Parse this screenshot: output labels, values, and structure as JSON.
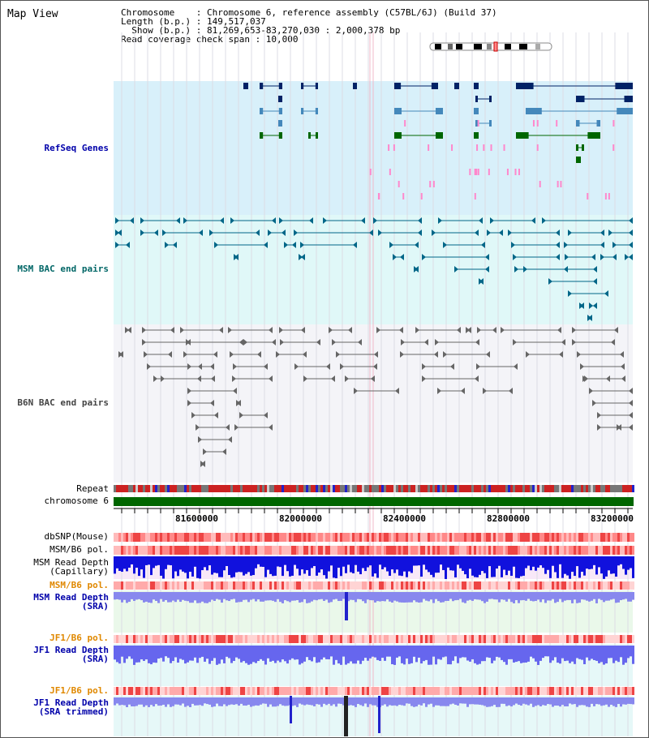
{
  "title": "Map View",
  "header": {
    "chromosome_line": "Chromosome    : Chromosome 6, reference assembly (C57BL/6J) (Build 37)",
    "length_line": "Length (b.p.) : 149,517,037",
    "show_line": "Show (b.p.) : 81,269,653-83,270,030 : 2,000,378 bp",
    "coverage_line": "Read coverage check span : 10,000"
  },
  "tracks": {
    "refseq": "RefSeq Genes",
    "msm_bac": "MSM BAC end pairs",
    "b6n_bac": "B6N BAC end pairs",
    "repeat": "Repeat",
    "chromosome": "chromosome 6",
    "dbsnp": "dbSNP(Mouse)",
    "msm_b6_pol": "MSM/B6 pol.",
    "msm_read_depth_cap": "MSM Read Depth\n(Capillary)",
    "msm_b6_pol2": "MSM/B6 pol.",
    "msm_read_depth_sra": "MSM Read Depth\n(SRA)",
    "jf1_b6_pol": "JF1/B6 pol.",
    "jf1_read_depth_sra": "JF1 Read Depth\n(SRA)",
    "jf1_b6_pol2": "JF1/B6 pol.",
    "jf1_read_depth_trim": "JF1 Read Depth\n(SRA trimmed)"
  },
  "axis": {
    "ticks": [
      "81600000",
      "82000000",
      "82400000",
      "82800000",
      "83200000"
    ]
  },
  "colors": {
    "refseq_bg": "#d8f0fa",
    "msm_bg": "#e0f8f8",
    "b6n_bg": "#f4f4f8",
    "label_blue": "#0000aa",
    "label_teal": "#006666",
    "label_gray": "#444444",
    "label_orange": "#e08800",
    "gene_navy": "#002266",
    "gene_blue": "#4488bb",
    "gene_green": "#006600"
  }
}
